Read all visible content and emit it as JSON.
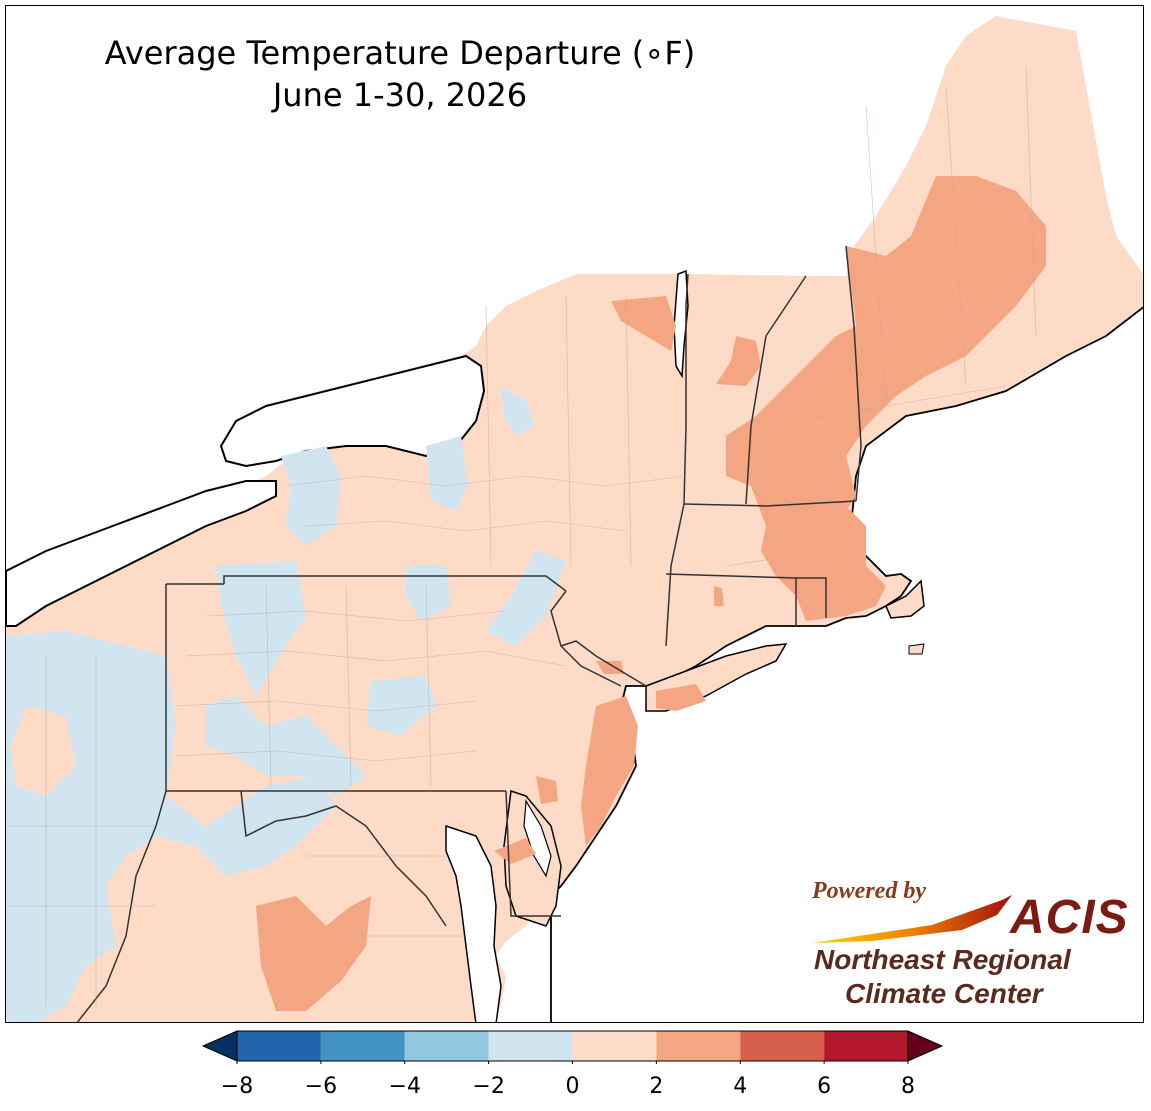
{
  "title": {
    "line1": "Average Temperature Departure (∘F)",
    "line2": "June 1-30, 2026"
  },
  "branding": {
    "powered_by": "Powered by",
    "acis": "ACIS",
    "org_line1": "Northeast Regional",
    "org_line2": "Climate Center"
  },
  "legend": {
    "ticks": [
      "−8",
      "−6",
      "−4",
      "−2",
      "0",
      "2",
      "4",
      "6",
      "8"
    ],
    "bins": [
      {
        "range": [
          -8,
          -6
        ],
        "color": "#2166ac"
      },
      {
        "range": [
          -6,
          -4
        ],
        "color": "#4393c3"
      },
      {
        "range": [
          -4,
          -2
        ],
        "color": "#92c5de"
      },
      {
        "range": [
          -2,
          0
        ],
        "color": "#d1e5f0"
      },
      {
        "range": [
          0,
          2
        ],
        "color": "#fddbc7"
      },
      {
        "range": [
          2,
          4
        ],
        "color": "#f4a582"
      },
      {
        "range": [
          4,
          6
        ],
        "color": "#d6604d"
      },
      {
        "range": [
          6,
          8
        ],
        "color": "#b2182b"
      }
    ],
    "under_color": "#053061",
    "over_color": "#67001f"
  },
  "map": {
    "region": "Northeast United States",
    "dominant_departure_color": "#fddbc7",
    "water_color": "#ffffff"
  }
}
